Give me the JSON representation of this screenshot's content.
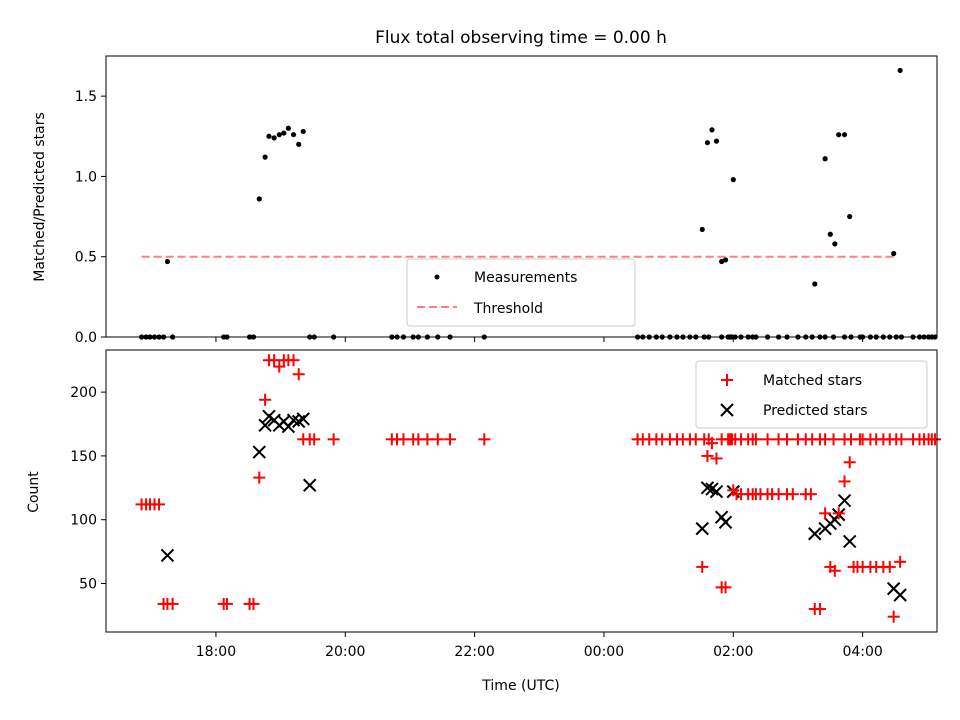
{
  "colors": {
    "measurement": "#000000",
    "threshold": "#ff7f7f",
    "matched": "#ff0000",
    "predicted": "#000000"
  },
  "chart_data": [
    {
      "type": "scatter",
      "title": "Flux total observing time = 0.00 h",
      "ylabel": "Matched/Predicted stars",
      "xlabel": "",
      "xlim": [
        16.3,
        29.15
      ],
      "ylim": [
        0,
        1.75
      ],
      "yticks": [
        0.0,
        0.5,
        1.0,
        1.5
      ],
      "ytick_labels": [
        "0.0",
        "0.5",
        "1.0",
        "1.5"
      ],
      "xticks": [
        18,
        20,
        22,
        24,
        26,
        28
      ],
      "legend": {
        "location": "lower center",
        "entries": [
          "Measurements",
          "Threshold"
        ]
      },
      "grid": false,
      "series": [
        {
          "name": "Measurements",
          "marker": "dot",
          "x": [
            16.85,
            16.92,
            16.98,
            17.05,
            17.12,
            17.19,
            17.25,
            17.33,
            18.12,
            18.17,
            18.52,
            18.58,
            18.67,
            18.76,
            18.82,
            18.9,
            18.98,
            19.05,
            19.12,
            19.2,
            19.28,
            19.35,
            19.45,
            19.52,
            19.82,
            20.72,
            20.8,
            20.9,
            21.05,
            21.13,
            21.27,
            21.43,
            21.62,
            22.15,
            24.52,
            24.6,
            24.7,
            24.81,
            24.9,
            25.02,
            25.13,
            25.22,
            25.33,
            25.42,
            25.55,
            25.62,
            25.82,
            25.92,
            25.95,
            25.98,
            26.03,
            26.12,
            26.23,
            26.3,
            26.35,
            26.53,
            26.7,
            26.83,
            27.0,
            27.12,
            27.22,
            27.34,
            27.42,
            27.55,
            27.72,
            27.82,
            27.96,
            28.0,
            28.12,
            28.21,
            28.32,
            28.42,
            28.52,
            28.6,
            28.78,
            28.88,
            28.95,
            29.02,
            29.07,
            29.12
          ],
          "y": [
            0,
            0,
            0,
            0,
            0,
            0,
            0.47,
            0,
            0,
            0,
            0,
            0,
            0.86,
            1.12,
            1.25,
            1.24,
            1.26,
            1.27,
            1.3,
            1.26,
            1.2,
            1.28,
            0,
            0,
            0,
            0,
            0,
            0,
            0,
            0,
            0,
            0,
            0,
            0,
            0,
            0,
            0,
            0,
            0,
            0,
            0,
            0,
            0,
            0,
            0,
            0,
            0,
            0,
            0,
            0,
            0,
            0,
            0,
            0,
            0,
            0,
            0,
            0,
            0,
            0,
            0,
            0,
            0,
            0,
            0,
            0,
            0,
            0,
            0,
            0,
            0,
            0,
            0,
            0,
            0,
            0,
            0,
            0,
            0,
            0
          ]
        },
        {
          "name": "Threshold",
          "marker": "dashed-line",
          "x": [
            16.85,
            28.48
          ],
          "y": [
            0.5,
            0.5
          ]
        },
        {
          "name": "",
          "marker": "dot",
          "x": [
            25.52,
            25.6,
            25.67,
            25.74,
            25.82,
            25.88,
            26.0,
            27.26,
            27.42,
            27.5,
            27.57,
            27.63,
            27.72,
            27.8,
            28.48,
            28.58
          ],
          "y": [
            0.67,
            1.21,
            1.29,
            1.22,
            0.47,
            0.48,
            0.98,
            0.33,
            1.11,
            0.64,
            0.58,
            1.26,
            1.26,
            0.75,
            0.52,
            1.66
          ]
        }
      ]
    },
    {
      "type": "scatter",
      "title": "",
      "ylabel": "Count",
      "xlabel": "Time (UTC)",
      "xlim": [
        16.3,
        29.15
      ],
      "ylim": [
        12,
        233
      ],
      "yticks": [
        50,
        100,
        150,
        200
      ],
      "ytick_labels": [
        "50",
        "100",
        "150",
        "200"
      ],
      "xticks": [
        18,
        20,
        22,
        24,
        26,
        28
      ],
      "xtick_labels": [
        "18:00",
        "20:00",
        "22:00",
        "00:00",
        "02:00",
        "04:00"
      ],
      "legend": {
        "location": "upper right",
        "entries": [
          "Matched stars",
          "Predicted stars"
        ]
      },
      "grid": false,
      "series": [
        {
          "name": "Matched stars",
          "marker": "plus",
          "x": [
            16.85,
            16.92,
            16.98,
            17.05,
            17.12,
            17.19,
            17.25,
            17.33,
            18.12,
            18.17,
            18.52,
            18.58,
            18.67,
            18.76,
            18.82,
            18.9,
            18.98,
            19.05,
            19.12,
            19.2,
            19.28,
            19.35,
            19.45,
            19.52,
            19.82,
            20.72,
            20.8,
            20.9,
            21.05,
            21.13,
            21.27,
            21.43,
            21.62,
            22.15,
            24.52,
            24.6,
            24.7,
            24.81,
            24.9,
            25.02,
            25.13,
            25.22,
            25.33,
            25.42,
            25.55,
            25.62,
            25.82,
            25.92,
            25.95,
            25.98,
            26.03,
            26.12,
            26.23,
            26.3,
            26.35,
            26.53,
            26.7,
            26.83,
            27.0,
            27.12,
            27.22,
            27.34,
            27.42,
            27.55,
            27.72,
            27.82,
            27.96,
            28.0,
            28.12,
            28.21,
            28.32,
            28.42,
            28.52,
            28.6,
            28.78,
            28.88,
            28.95,
            29.02,
            29.07,
            29.12
          ],
          "y": [
            112,
            112,
            112,
            112,
            112,
            34,
            34,
            34,
            34,
            34,
            34,
            34,
            133,
            194,
            225,
            225,
            220,
            225,
            225,
            225,
            214,
            163,
            163,
            163,
            163,
            163,
            163,
            163,
            163,
            163,
            163,
            163,
            163,
            163,
            163,
            163,
            163,
            163,
            163,
            163,
            163,
            163,
            163,
            163,
            163,
            163,
            163,
            163,
            163,
            163,
            163,
            163,
            163,
            163,
            163,
            163,
            163,
            163,
            163,
            163,
            163,
            163,
            163,
            163,
            163,
            163,
            163,
            163,
            163,
            163,
            163,
            163,
            163,
            163,
            163,
            163,
            163,
            163,
            163,
            163
          ]
        },
        {
          "name": "Predicted stars",
          "marker": "x",
          "x": [
            17.25,
            18.67,
            18.76,
            18.82,
            18.9,
            18.98,
            19.05,
            19.12,
            19.2,
            19.28,
            19.35,
            19.45,
            25.52,
            25.6,
            25.67,
            25.74,
            25.82,
            25.88,
            26.0,
            27.26,
            27.42,
            27.5,
            27.57,
            27.63,
            27.72,
            27.8,
            28.48,
            28.58
          ],
          "y": [
            72,
            153,
            174,
            181,
            178,
            174,
            177,
            173,
            178,
            177,
            179,
            127,
            93,
            125,
            124,
            122,
            102,
            98,
            122,
            89,
            93,
            97,
            100,
            104,
            115,
            83,
            46,
            41
          ]
        },
        {
          "name": "",
          "marker": "plus",
          "x": [
            25.52,
            25.6,
            25.67,
            25.74,
            25.82,
            25.88,
            26.0,
            26.05,
            26.12,
            26.23,
            26.3,
            26.35,
            26.42,
            26.53,
            26.6,
            26.7,
            26.83,
            26.92,
            27.12,
            27.2,
            27.26,
            27.34,
            27.42,
            27.5,
            27.57,
            27.63,
            27.72,
            27.8,
            27.86,
            27.92,
            28.0,
            28.12,
            28.21,
            28.32,
            28.42,
            28.48,
            28.58
          ],
          "y": [
            63,
            150,
            160,
            148,
            47,
            47,
            123,
            120,
            120,
            120,
            120,
            120,
            120,
            120,
            120,
            120,
            120,
            120,
            120,
            120,
            30,
            30,
            105,
            63,
            60,
            105,
            130,
            145,
            63,
            63,
            63,
            63,
            63,
            63,
            63,
            24,
            67
          ]
        }
      ]
    }
  ]
}
